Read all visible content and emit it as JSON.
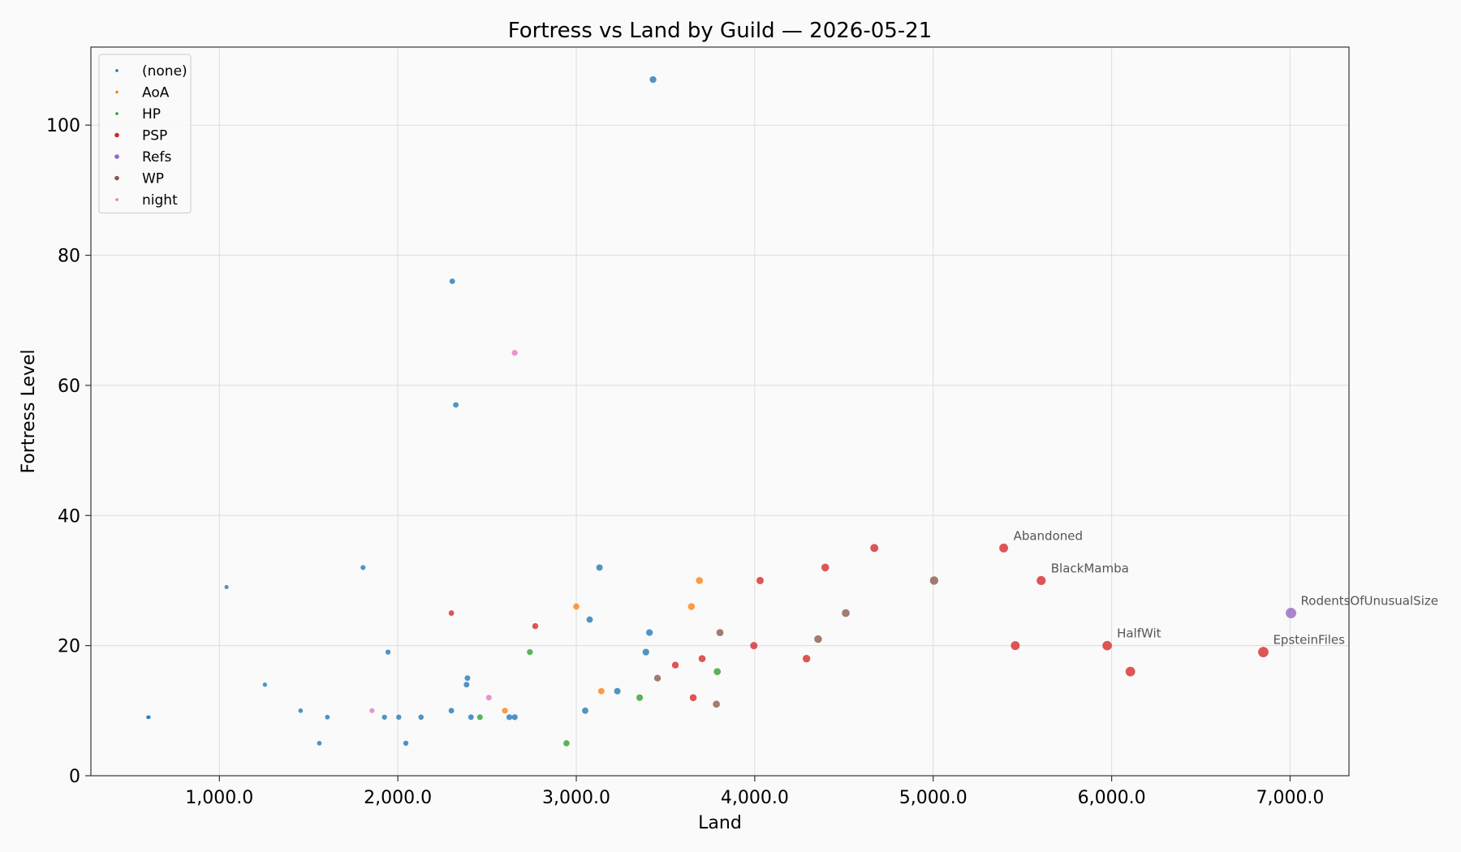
{
  "chart_data": {
    "type": "scatter",
    "title": "Fortress vs Land by Guild — 2026-05-21",
    "xlabel": "Land",
    "ylabel": "Fortress Level",
    "xlim": [
      280,
      7330
    ],
    "ylim": [
      0,
      112
    ],
    "xticks": [
      1000,
      2000,
      3000,
      4000,
      5000,
      6000,
      7000
    ],
    "xtick_labels": [
      "1,000.0",
      "2,000.0",
      "3,000.0",
      "4,000.0",
      "5,000.0",
      "6,000.0",
      "7,000.0"
    ],
    "yticks": [
      0,
      20,
      40,
      60,
      80,
      100
    ],
    "ytick_labels": [
      "0",
      "20",
      "40",
      "60",
      "80",
      "100"
    ],
    "grid": true,
    "legend_position": "top-left",
    "series": [
      {
        "name": "(none)",
        "color": "#1f77b4",
        "points": [
          [
            600,
            9
          ],
          [
            605,
            9
          ],
          [
            1040,
            29
          ],
          [
            1255,
            14
          ],
          [
            1455,
            10
          ],
          [
            1560,
            5
          ],
          [
            1605,
            9
          ],
          [
            1805,
            32
          ],
          [
            1925,
            9
          ],
          [
            1945,
            19
          ],
          [
            2005,
            9
          ],
          [
            2045,
            5
          ],
          [
            2130,
            9
          ],
          [
            2300,
            10
          ],
          [
            2305,
            76
          ],
          [
            2325,
            57
          ],
          [
            2385,
            14
          ],
          [
            2390,
            15
          ],
          [
            2410,
            9
          ],
          [
            2625,
            9
          ],
          [
            2655,
            9
          ],
          [
            3050,
            10
          ],
          [
            3075,
            24
          ],
          [
            3130,
            32
          ],
          [
            3230,
            13
          ],
          [
            3390,
            19
          ],
          [
            3410,
            22
          ],
          [
            3430,
            107
          ]
        ]
      },
      {
        "name": "AoA",
        "color": "#ff7f0e",
        "points": [
          [
            2600,
            10
          ],
          [
            3000,
            26
          ],
          [
            3140,
            13
          ],
          [
            3645,
            26
          ],
          [
            3690,
            30
          ]
        ]
      },
      {
        "name": "HP",
        "color": "#2ca02c",
        "points": [
          [
            2460,
            9
          ],
          [
            2740,
            19
          ],
          [
            2945,
            5
          ],
          [
            3355,
            12
          ],
          [
            3790,
            16
          ]
        ]
      },
      {
        "name": "PSP",
        "color": "#d62728",
        "points": [
          [
            2300,
            25
          ],
          [
            2770,
            23
          ],
          [
            3555,
            17
          ],
          [
            3655,
            12
          ],
          [
            3705,
            18
          ],
          [
            3995,
            20
          ],
          [
            4030,
            30
          ],
          [
            4290,
            18
          ],
          [
            4395,
            32
          ],
          [
            4670,
            35
          ],
          [
            5395,
            35
          ],
          [
            5460,
            20
          ],
          [
            5605,
            30
          ],
          [
            5975,
            20
          ],
          [
            6105,
            16
          ],
          [
            6850,
            19
          ]
        ]
      },
      {
        "name": "Refs",
        "color": "#9467bd",
        "points": [
          [
            7005,
            25
          ]
        ]
      },
      {
        "name": "WP",
        "color": "#8c564b",
        "points": [
          [
            3455,
            15
          ],
          [
            3785,
            11
          ],
          [
            3805,
            22
          ],
          [
            4355,
            21
          ],
          [
            4510,
            25
          ],
          [
            5005,
            30
          ]
        ]
      },
      {
        "name": "night",
        "color": "#e377c2",
        "points": [
          [
            1855,
            10
          ],
          [
            2510,
            12
          ],
          [
            2655,
            65
          ]
        ]
      }
    ],
    "annotations": [
      {
        "text": "Abandoned",
        "x": 5395,
        "y": 35
      },
      {
        "text": "BlackMamba",
        "x": 5605,
        "y": 30
      },
      {
        "text": "RodentsOfUnusualSize",
        "x": 7005,
        "y": 25
      },
      {
        "text": "HalfWit",
        "x": 5975,
        "y": 20
      },
      {
        "text": "EpsteinFiles",
        "x": 6850,
        "y": 19
      }
    ]
  }
}
